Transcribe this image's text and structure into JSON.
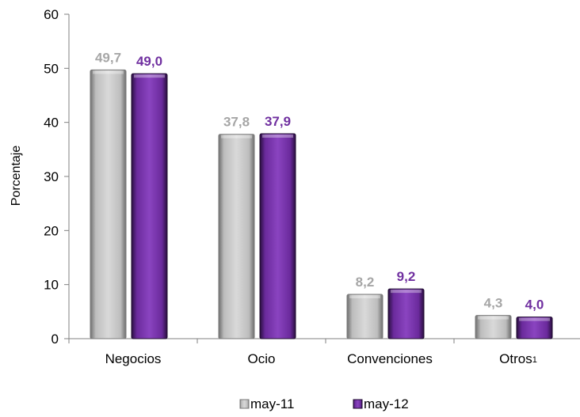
{
  "chart_data": {
    "type": "bar",
    "categories": [
      "Negocios",
      "Ocio",
      "Convenciones",
      "Otros"
    ],
    "category_superscripts": [
      "",
      "",
      "",
      "1"
    ],
    "series": [
      {
        "name": "may-11",
        "values": [
          49.7,
          37.8,
          8.2,
          4.3
        ],
        "labels": [
          "49,7",
          "37,8",
          "8,2",
          "4,3"
        ],
        "color": "#a6a6a6",
        "label_color": "#a6a6a6"
      },
      {
        "name": "may-12",
        "values": [
          49.0,
          37.9,
          9.2,
          4.0
        ],
        "labels": [
          "49,0",
          "37,9",
          "9,2",
          "4,0"
        ],
        "color": "#6a2a9c",
        "label_color": "#7030a0"
      }
    ],
    "ylabel": "Porcentaje",
    "ylim": [
      0,
      60
    ],
    "yticks": [
      0,
      10,
      20,
      30,
      40,
      50,
      60
    ],
    "grid": false,
    "legend_position": "bottom"
  }
}
